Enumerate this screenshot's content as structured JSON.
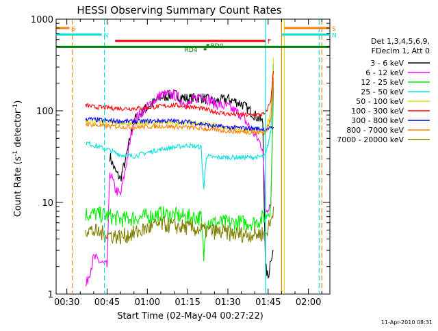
{
  "chart_data": {
    "type": "line",
    "title": "HESSI Observing Summary Count Rates",
    "xlabel": "Start Time (02-May-04 00:27:22)",
    "ylabel_main": "Count Rate (s",
    "ylabel_sup1": "-1",
    "ylabel_mid": " detector",
    "ylabel_sup2": "-1",
    "ylabel_end": ")",
    "y_scale": "log",
    "ylim": [
      1,
      1000
    ],
    "xlim": [
      "00:26",
      "02:08"
    ],
    "x_ticks": [
      "00:30",
      "00:45",
      "01:00",
      "01:15",
      "01:30",
      "01:45",
      "02:00"
    ],
    "y_ticks": [
      "1",
      "10",
      "100",
      "1000"
    ],
    "legend_header": [
      "Det 1,3,4,5,6,9,",
      "FDecim 1, Att 0"
    ],
    "timestamp": "11-Apr-2010 08:31",
    "series": [
      {
        "name": "3 - 6 keV",
        "color": "#000000",
        "t": [
          "00:36",
          "00:42",
          "00:45",
          "00:46",
          "00:48",
          "00:50",
          "00:52",
          "00:55",
          "01:00",
          "01:05",
          "01:10",
          "01:15",
          "01:20",
          "01:25",
          "01:30",
          "01:35",
          "01:40",
          "01:43",
          "01:44",
          "01:45",
          "01:46",
          "01:47"
        ],
        "values": [
          null,
          null,
          null,
          32,
          22,
          18,
          30,
          80,
          110,
          140,
          150,
          135,
          140,
          125,
          135,
          120,
          90,
          75,
          2,
          1.5,
          2.5,
          3
        ]
      },
      {
        "name": "6 - 12 keV",
        "color": "#ff00ff",
        "t": [
          "00:37",
          "00:40",
          "00:45",
          "00:46",
          "00:48",
          "00:50",
          "00:52",
          "00:55",
          "01:00",
          "01:05",
          "01:10",
          "01:15",
          "01:20",
          "01:25",
          "01:30",
          "01:35",
          "01:40",
          "01:43",
          "01:44",
          "01:46",
          "01:47"
        ],
        "values": [
          1.2,
          2.5,
          2,
          22,
          14,
          12,
          25,
          80,
          110,
          150,
          150,
          115,
          150,
          120,
          110,
          90,
          55,
          40,
          8,
          10,
          180
        ]
      },
      {
        "name": "12 - 25 keV",
        "color": "#00ee00",
        "t": [
          "00:37",
          "00:40",
          "00:45",
          "00:50",
          "00:55",
          "01:00",
          "01:05",
          "01:10",
          "01:15",
          "01:20",
          "01:21",
          "01:22",
          "01:25",
          "01:30",
          "01:35",
          "01:40",
          "01:44",
          "01:46",
          "01:47"
        ],
        "values": [
          7.5,
          7.5,
          7.2,
          6.5,
          6.8,
          7,
          7.5,
          7.2,
          7,
          6.8,
          2.5,
          6.5,
          6,
          6,
          6,
          6,
          7,
          9,
          220
        ]
      },
      {
        "name": "25 - 50 keV",
        "color": "#00e0e0",
        "t": [
          "00:37",
          "00:40",
          "00:45",
          "00:50",
          "00:55",
          "01:00",
          "01:05",
          "01:10",
          "01:15",
          "01:20",
          "01:21",
          "01:22",
          "01:25",
          "01:30",
          "01:35",
          "01:40",
          "01:44",
          "01:46",
          "01:47"
        ],
        "values": [
          45,
          42,
          38,
          33,
          32,
          35,
          38,
          40,
          42,
          40,
          14,
          32,
          31,
          31,
          31,
          31,
          32,
          60,
          330
        ]
      },
      {
        "name": "50 - 100 keV",
        "color": "#dddd00",
        "t": [
          "00:37",
          "00:40",
          "00:45",
          "00:50",
          "00:55",
          "01:00",
          "01:05",
          "01:10",
          "01:15",
          "01:20",
          "01:25",
          "01:30",
          "01:35",
          "01:40",
          "01:44",
          "01:46",
          "01:47"
        ],
        "values": [
          78,
          76,
          75,
          73,
          72,
          73,
          74,
          74,
          74,
          72,
          70,
          65,
          62,
          60,
          58,
          100,
          380
        ]
      },
      {
        "name": "100 - 300 keV",
        "color": "#ff0000",
        "t": [
          "00:37",
          "00:40",
          "00:45",
          "00:50",
          "00:55",
          "01:00",
          "01:05",
          "01:10",
          "01:15",
          "01:20",
          "01:25",
          "01:30",
          "01:35",
          "01:40",
          "01:44",
          "01:46",
          "01:47"
        ],
        "values": [
          115,
          110,
          108,
          106,
          106,
          108,
          112,
          115,
          112,
          106,
          98,
          92,
          90,
          90,
          92,
          130,
          270
        ]
      },
      {
        "name": "300 - 800 keV",
        "color": "#0000ff",
        "t": [
          "00:37",
          "00:40",
          "00:45",
          "00:50",
          "00:55",
          "01:00",
          "01:05",
          "01:10",
          "01:15",
          "01:20",
          "01:25",
          "01:30",
          "01:35",
          "01:40",
          "01:44",
          "01:46",
          "01:47"
        ],
        "values": [
          82,
          80,
          78,
          77,
          76,
          77,
          78,
          77,
          76,
          72,
          68,
          66,
          65,
          64,
          63,
          64,
          66
        ]
      },
      {
        "name": "800 - 7000 keV",
        "color": "#ff8000",
        "t": [
          "00:37",
          "00:40",
          "00:45",
          "00:50",
          "00:55",
          "01:00",
          "01:05",
          "01:10",
          "01:15",
          "01:20",
          "01:25",
          "01:30",
          "01:35",
          "01:40",
          "01:44",
          "01:46",
          "01:47"
        ],
        "values": [
          72,
          70,
          68,
          67,
          66,
          67,
          68,
          67,
          66,
          64,
          62,
          60,
          59,
          58,
          58,
          80,
          230
        ]
      },
      {
        "name": "7000 - 20000 keV",
        "color": "#808000",
        "t": [
          "00:37",
          "00:40",
          "00:45",
          "00:50",
          "00:55",
          "01:00",
          "01:05",
          "01:10",
          "01:15",
          "01:20",
          "01:25",
          "01:30",
          "01:35",
          "01:40",
          "01:44",
          "01:46",
          "01:47"
        ],
        "values": [
          5.2,
          4.8,
          4.5,
          4.2,
          4.6,
          5.2,
          5.8,
          5.5,
          5.3,
          5,
          4.8,
          4.6,
          4.5,
          4.5,
          4.6,
          6,
          9
        ]
      }
    ],
    "flag_bars": [
      {
        "label": "S",
        "color": "#ff8000",
        "start": "00:26",
        "end": "00:31",
        "level": 800
      },
      {
        "label": "S",
        "color": "#ff8000",
        "start": "01:51",
        "end": "02:08",
        "level": 800
      },
      {
        "label": "N",
        "color": "#00e0e0",
        "start": "00:26",
        "end": "00:43",
        "level": 680
      },
      {
        "label": "N",
        "color": "#00e0e0",
        "start": "01:50",
        "end": "02:08",
        "level": 680
      },
      {
        "label": "F",
        "color": "#ff0000",
        "start": "00:48",
        "end": "01:44",
        "level": 580
      },
      {
        "label": "RD0",
        "color": "#008000",
        "start": "01:22",
        "end": "01:23",
        "level": 520
      },
      {
        "label": "RD4",
        "color": "#008000",
        "start": "01:21",
        "end": "01:22",
        "level": 470
      },
      {
        "label": "",
        "color": "#008000",
        "start": "00:26",
        "end": "02:08",
        "level": 500
      }
    ],
    "vlines": [
      {
        "t": "00:32",
        "color": "#ff8000",
        "style": "dashed"
      },
      {
        "t": "00:44",
        "color": "#00e0e0",
        "style": "dashed"
      },
      {
        "t": "01:44",
        "color": "#00e0e0",
        "style": "solid"
      },
      {
        "t": "01:50",
        "color": "#ff8000",
        "style": "solid"
      },
      {
        "t": "01:51",
        "color": "#dddd00",
        "style": "solid"
      },
      {
        "t": "02:04",
        "color": "#00e0e0",
        "style": "dashed"
      },
      {
        "t": "02:05",
        "color": "#ff8000",
        "style": "dashed"
      }
    ],
    "legend_placement": "right",
    "grid": false
  }
}
